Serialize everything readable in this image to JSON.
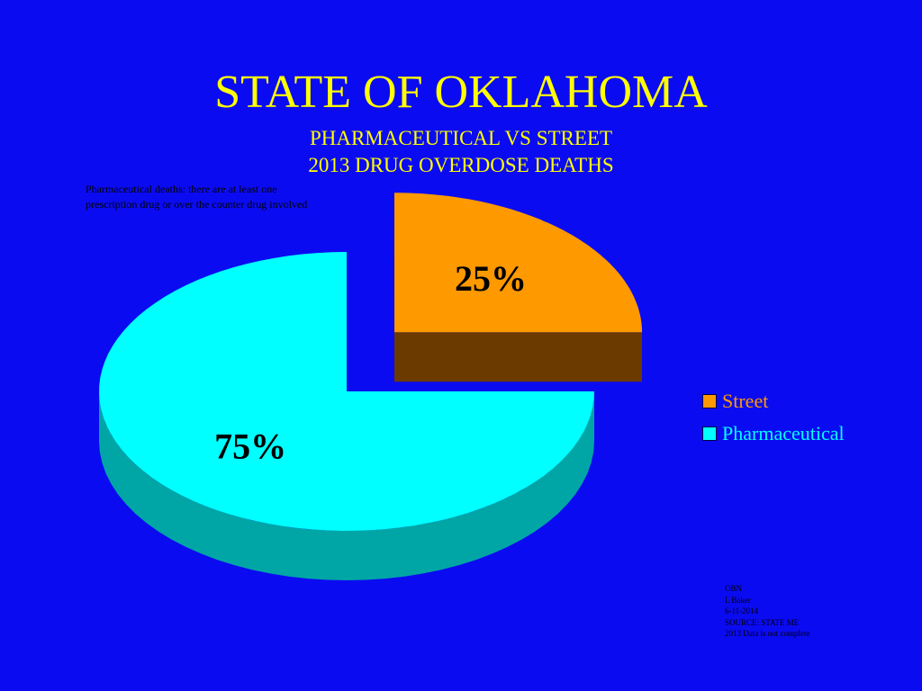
{
  "title": "STATE OF OKLAHOMA",
  "subtitle_line1": "PHARMACEUTICAL VS STREET",
  "subtitle_line2": "2013 DRUG OVERDOSE  DEATHS",
  "note_line1": "Pharmaceutical deaths: there are at least one",
  "note_line2": "prescription drug or over the counter drug involved",
  "chart_data": {
    "type": "pie",
    "style": "3d exploded",
    "slices": [
      {
        "label": "Street",
        "value": 25,
        "display": "25%",
        "color": "#FF9900",
        "side_color": "#6B3A00"
      },
      {
        "label": "Pharmaceutical",
        "value": 75,
        "display": "75%",
        "color": "#00FFFF",
        "side_color": "#00A6A6"
      }
    ],
    "legend_placement": "right"
  },
  "credits": [
    "OBN",
    "L Baker",
    "6-11-2014",
    "SOURCE:  STATE  ME",
    "2013 Data is not complete"
  ],
  "colors": {
    "background": "#0B0BF2",
    "title": "#FFFF00",
    "text": "#000000"
  }
}
